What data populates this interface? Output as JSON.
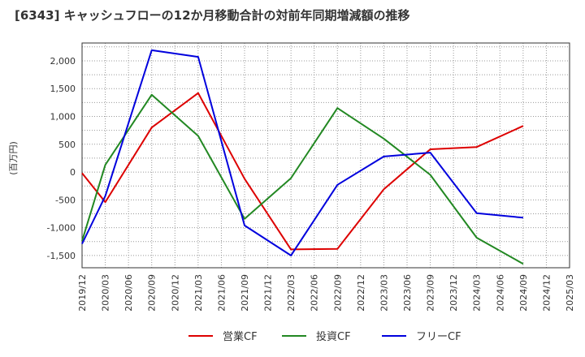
{
  "chart_data": {
    "type": "line",
    "title": "[6343]  キャッシュフローの12か月移動合計の対前年同期増減額の推移",
    "ylabel": "(百万円)",
    "xlabel": "",
    "ylim": [
      -1720,
      2320
    ],
    "yticks": [
      2000,
      1500,
      1000,
      500,
      0,
      -500,
      -1000,
      -1500
    ],
    "ytick_labels": [
      "2,000",
      "1,500",
      "1,000",
      "500",
      "0",
      "-500",
      "-1,000",
      "-1,500"
    ],
    "categories": [
      "2019/12",
      "2020/03",
      "2020/06",
      "2020/09",
      "2020/12",
      "2021/03",
      "2021/06",
      "2021/09",
      "2021/12",
      "2022/03",
      "2022/06",
      "2022/09",
      "2022/12",
      "2023/03",
      "2023/06",
      "2023/09",
      "2023/12",
      "2024/03",
      "2024/06",
      "2024/09",
      "2024/12",
      "2025/03"
    ],
    "series": [
      {
        "name": "営業CF",
        "color": "#dd0000",
        "values": [
          -20,
          -540,
          null,
          800,
          null,
          1420,
          null,
          -120,
          null,
          -1390,
          null,
          -1380,
          null,
          -310,
          null,
          410,
          null,
          450,
          null,
          830,
          null,
          null
        ]
      },
      {
        "name": "投資CF",
        "color": "#228822",
        "values": [
          -1240,
          130,
          null,
          1390,
          null,
          650,
          null,
          -840,
          null,
          -110,
          null,
          1150,
          null,
          600,
          null,
          -50,
          null,
          -1180,
          null,
          -1650,
          null,
          null
        ]
      },
      {
        "name": "フリーCF",
        "color": "#0000dd",
        "values": [
          -1290,
          -430,
          null,
          2190,
          null,
          2070,
          null,
          -960,
          null,
          -1500,
          null,
          -230,
          null,
          280,
          null,
          350,
          null,
          -740,
          null,
          -820,
          null,
          null
        ]
      }
    ],
    "legend_position": "bottom"
  }
}
